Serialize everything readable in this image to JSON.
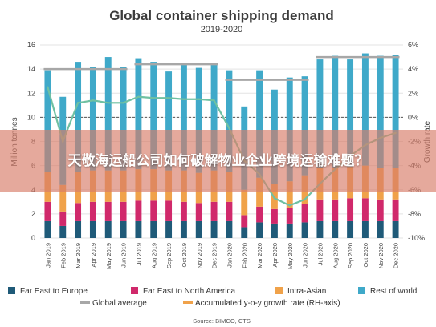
{
  "colors": {
    "far_east_europe": "#1f5a78",
    "far_east_north_america": "#d0296b",
    "intra_asian": "#f0a24a",
    "rest_of_world": "#3fa9c9",
    "global_average": "#a7a7a7",
    "growth_line": "#6fc0a2",
    "overlay": "#d87c68"
  },
  "overlay": {
    "text": "天敬海运船公司如何破解物业企业跨境运输难题？"
  },
  "chart_data": {
    "type": "bar",
    "title": "Global container shipping demand",
    "subtitle": "2019-2020",
    "ylabel": "Million tonnes",
    "y2label": "Growth rate",
    "source": "Source: BIMCO, CTS",
    "ylim": [
      0,
      16
    ],
    "y2lim": [
      -10,
      6
    ],
    "yticks": [
      "0",
      "2",
      "4",
      "6",
      "8",
      "10",
      "12",
      "14",
      "16"
    ],
    "y2ticks": [
      "-10%",
      "-8%",
      "-6%",
      "-4%",
      "-2%",
      "0%",
      "2%",
      "4%",
      "6%"
    ],
    "categories": [
      "Jan 2019",
      "Feb 2019",
      "Mar 2019",
      "Apr 2019",
      "May 2019",
      "Jun 2019",
      "Jul 2019",
      "Aug 2019",
      "Sep 2019",
      "Oct 2019",
      "Nov 2019",
      "Dec 2019",
      "Jan 2020",
      "Feb 2020",
      "Mar 2020",
      "Apr 2020",
      "May 2020",
      "Jun 2020",
      "Jul 2020",
      "Aug 2020",
      "Sep 2020",
      "Oct 2020",
      "Nov 2020",
      "Dec 2020"
    ],
    "series": [
      {
        "name": "Far East to Europe",
        "values": [
          1.4,
          1.0,
          1.4,
          1.4,
          1.4,
          1.4,
          1.4,
          1.4,
          1.4,
          1.4,
          1.4,
          1.4,
          1.4,
          0.9,
          1.3,
          1.2,
          1.2,
          1.3,
          1.4,
          1.4,
          1.4,
          1.4,
          1.4,
          1.4
        ]
      },
      {
        "name": "Far East to North America",
        "values": [
          1.6,
          1.2,
          1.5,
          1.6,
          1.6,
          1.6,
          1.7,
          1.7,
          1.7,
          1.6,
          1.5,
          1.6,
          1.6,
          1.0,
          1.3,
          1.2,
          1.3,
          1.5,
          1.8,
          1.8,
          1.9,
          1.9,
          1.8,
          1.8
        ]
      },
      {
        "name": "Intra-Asian",
        "values": [
          2.5,
          2.2,
          2.6,
          2.6,
          2.6,
          2.6,
          2.6,
          2.6,
          2.5,
          2.6,
          2.5,
          2.6,
          2.5,
          2.1,
          2.4,
          2.1,
          2.2,
          2.4,
          2.6,
          2.6,
          2.6,
          2.7,
          2.6,
          2.6
        ]
      },
      {
        "name": "Rest of world",
        "values": [
          8.4,
          7.3,
          9.1,
          8.6,
          9.4,
          8.6,
          9.2,
          8.9,
          8.2,
          8.9,
          8.7,
          8.8,
          8.4,
          6.9,
          8.9,
          7.8,
          8.6,
          8.2,
          9.0,
          9.3,
          8.9,
          9.3,
          9.3,
          9.4
        ]
      }
    ],
    "global_average": {
      "name": "Global average",
      "segments": [
        {
          "from": "Jan 2019",
          "to": "Jun 2019",
          "value": 14.0
        },
        {
          "from": "Jul 2019",
          "to": "Dec 2019",
          "value": 14.4
        },
        {
          "from": "Jan 2020",
          "to": "Jun 2020",
          "value": 13.1
        },
        {
          "from": "Jul 2020",
          "to": "Dec 2020",
          "value": 15.0
        }
      ]
    },
    "growth": {
      "name": "Accumulated y-o-y growth rate (RH-axis)",
      "values": [
        2.5,
        -2.0,
        1.2,
        1.4,
        1.2,
        1.2,
        1.7,
        1.6,
        1.6,
        1.5,
        1.5,
        1.4,
        -0.9,
        -3.6,
        -4.7,
        -6.7,
        -7.3,
        -6.8,
        -5.5,
        -4.3,
        -3.2,
        -2.3,
        -1.7,
        -1.3
      ]
    },
    "legend": [
      "Far East to Europe",
      "Far East to North America",
      "Intra-Asian",
      "Rest of world",
      "Global average",
      "Accumulated y-o-y growth rate (RH-axis)"
    ],
    "legend_position": "bottom",
    "grid": true
  }
}
